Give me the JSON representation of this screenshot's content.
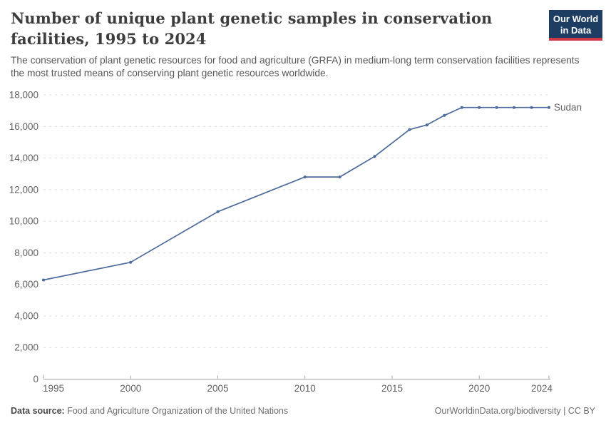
{
  "header": {
    "title": "Number of unique plant genetic samples in conservation facilities, 1995 to 2024",
    "subtitle": "The conservation of plant genetic resources for food and agriculture (GRFA) in medium-long term conservation facilities represents the most trusted means of conserving plant genetic resources worldwide.",
    "logo": {
      "line1": "Our World",
      "line2": "in Data",
      "bg_color": "#1d3d63",
      "accent_color": "#cf3744"
    }
  },
  "chart_data": {
    "type": "line",
    "title": "Number of unique plant genetic samples in conservation facilities, 1995 to 2024",
    "xlabel": "",
    "ylabel": "",
    "xlim": [
      1995,
      2024
    ],
    "ylim": [
      0,
      18000
    ],
    "x_ticks": [
      1995,
      2000,
      2005,
      2010,
      2015,
      2020,
      2024
    ],
    "y_ticks": [
      0,
      2000,
      4000,
      6000,
      8000,
      10000,
      12000,
      14000,
      16000,
      18000
    ],
    "grid": "horizontal-dashed",
    "grid_color": "#dcdcdc",
    "axis_color": "#a6a6a6",
    "tick_label_color": "#636363",
    "legend_position": "end-of-line",
    "series": [
      {
        "name": "Sudan",
        "color": "#4c6a9c",
        "x": [
          1995,
          2000,
          2005,
          2010,
          2012,
          2014,
          2016,
          2017,
          2018,
          2019,
          2020,
          2021,
          2022,
          2023,
          2024
        ],
        "values": [
          6280,
          7400,
          10600,
          12800,
          12800,
          14100,
          15800,
          16100,
          16700,
          17200,
          17200,
          17200,
          17200,
          17200,
          17200
        ]
      }
    ]
  },
  "footer": {
    "source_label": "Data source:",
    "source_text": "Food and Agriculture Organization of the United Nations",
    "right_text": "OurWorldinData.org/biodiversity | CC BY"
  }
}
